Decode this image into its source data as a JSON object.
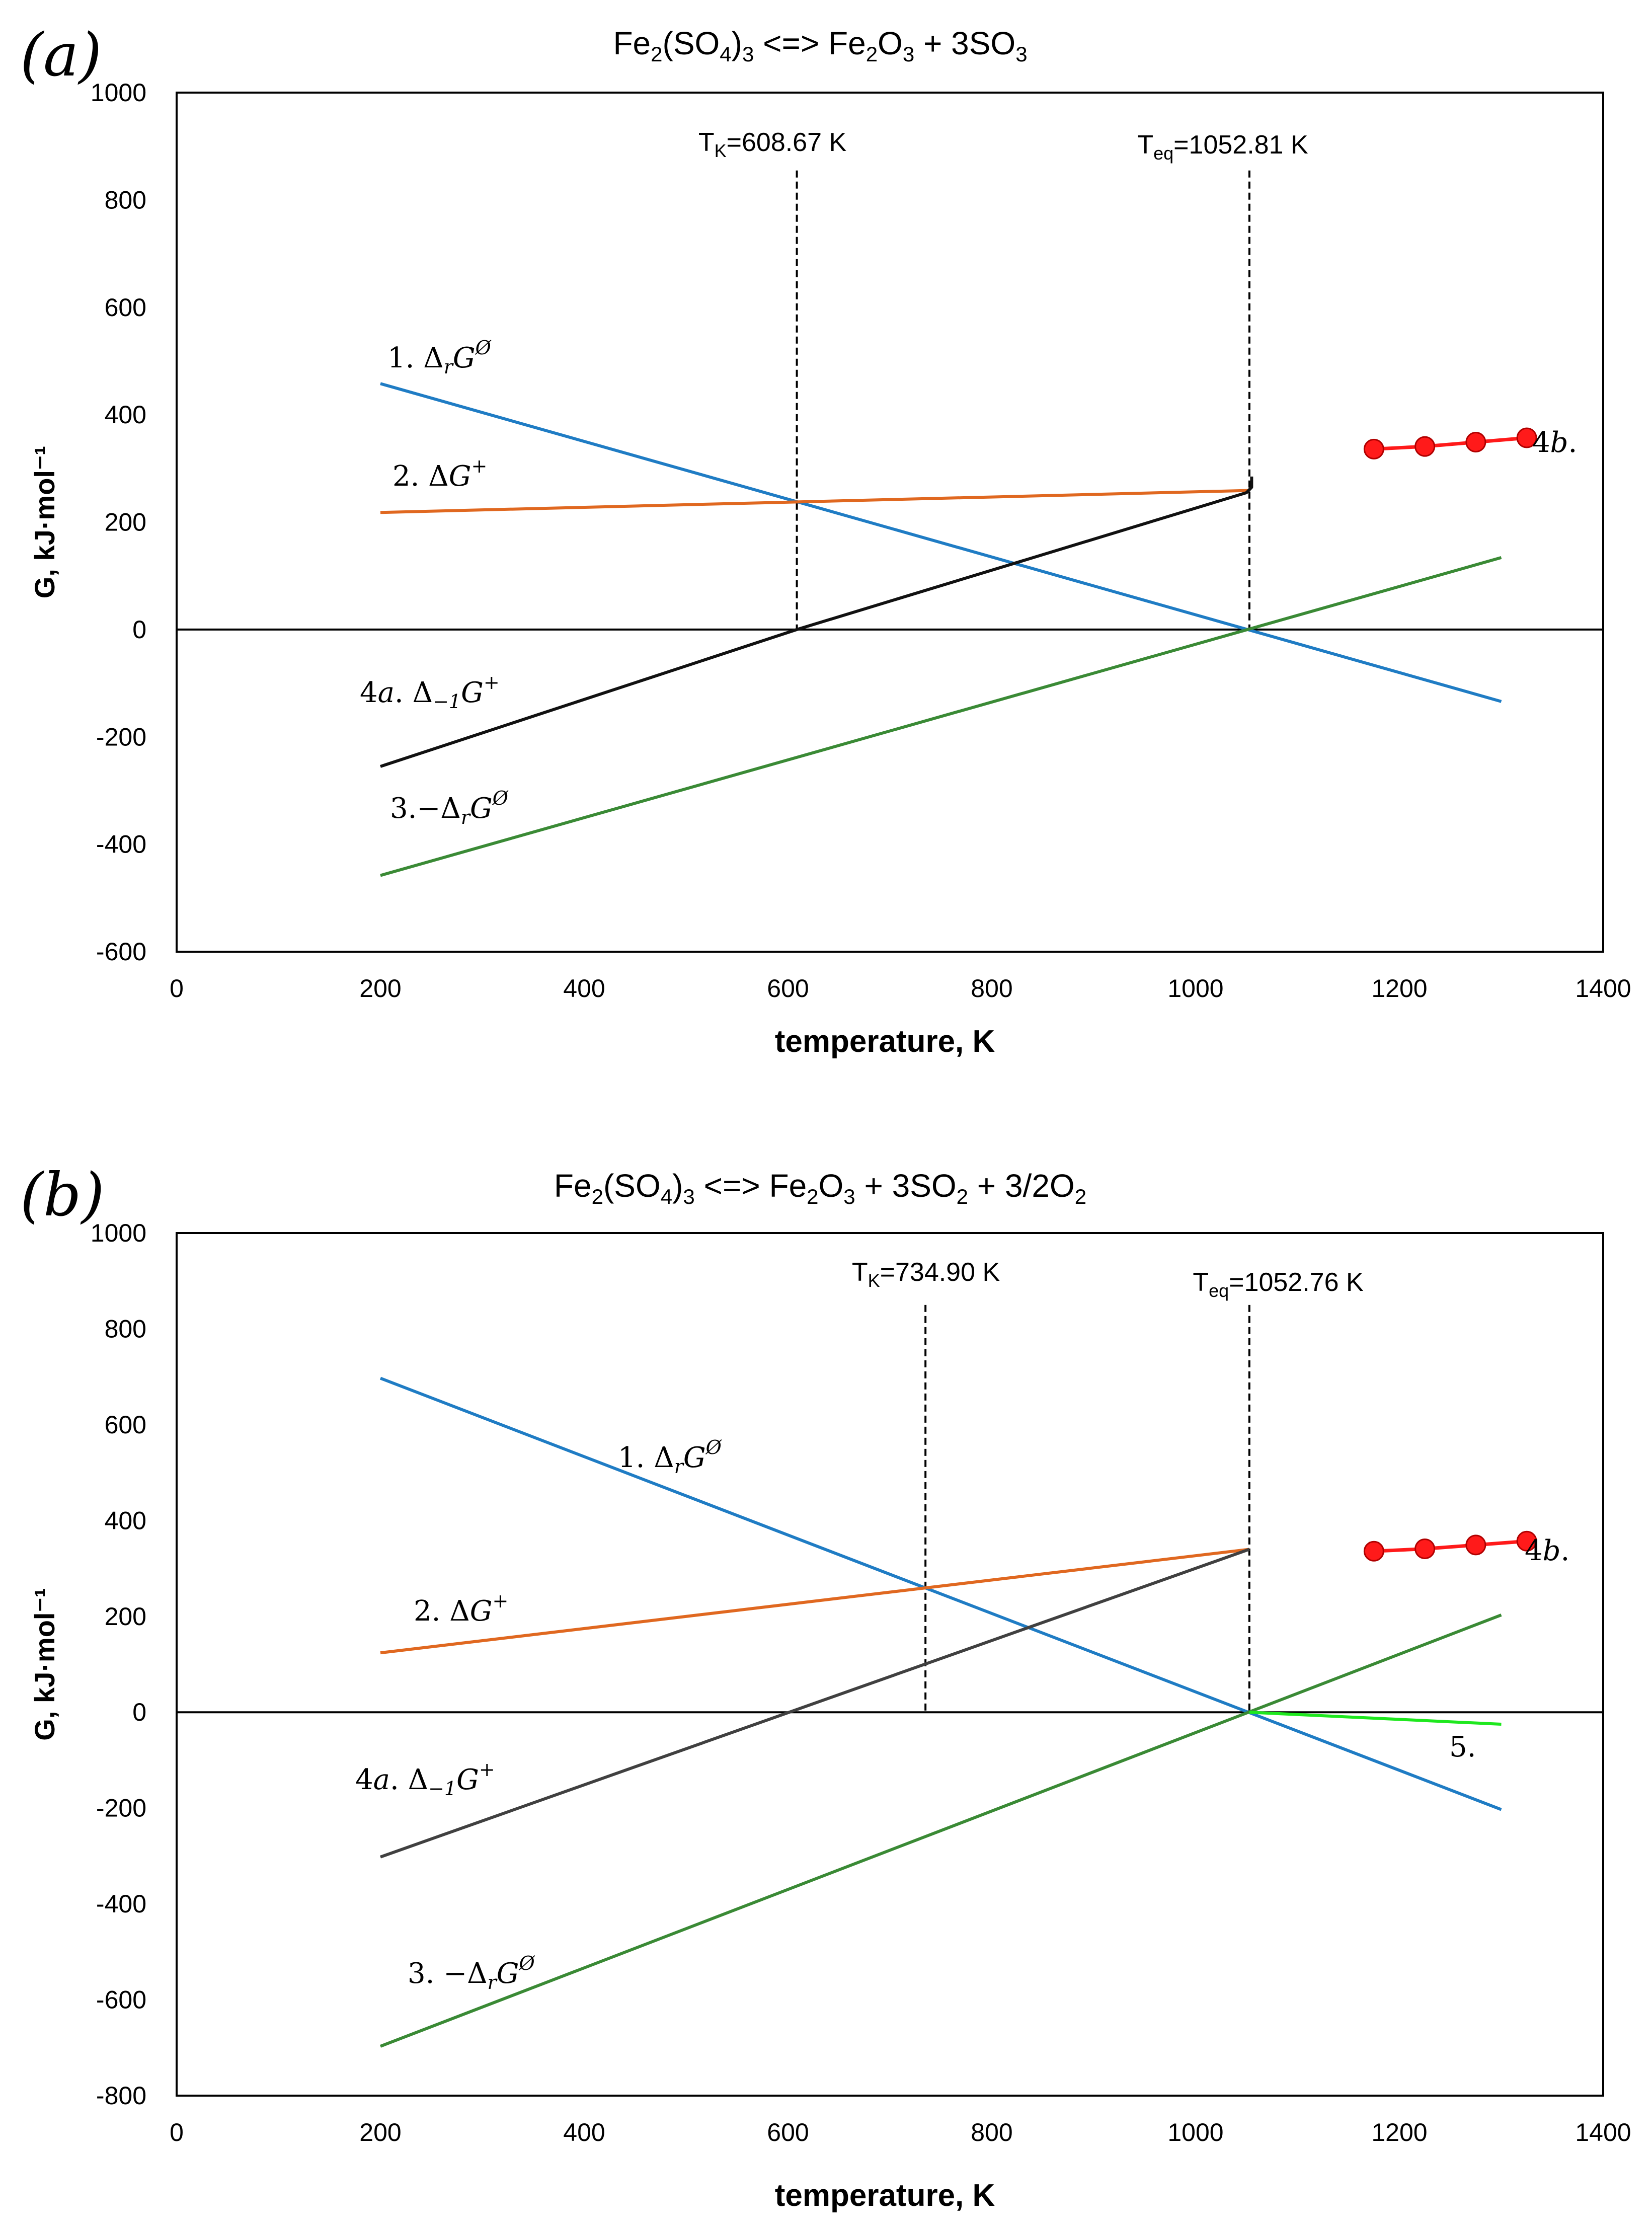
{
  "chart_data": [
    {
      "type": "line",
      "panel_label": "(a)",
      "title": {
        "main": "Fe",
        "sub1": "2",
        "mid1": "(SO",
        "sub2": "4",
        "mid2": ")",
        "sub3": "3",
        "mid3": " <=> Fe",
        "sub4": "2",
        "mid4": "O",
        "sub5": "3",
        "mid5": " + 3SO",
        "sub6": "3"
      },
      "xlabel": "temperature,  K",
      "ylabel": "G, kJ·mol⁻¹",
      "xlim": [
        0,
        1400
      ],
      "ylim": [
        -600,
        1000
      ],
      "xticks": [
        0,
        200,
        400,
        600,
        800,
        1000,
        1200,
        1400
      ],
      "yticks": [
        -600,
        -400,
        -200,
        0,
        200,
        400,
        600,
        800,
        1000
      ],
      "xtick_labels": [
        "0",
        "200",
        "400",
        "600",
        "800",
        "1000",
        "1200",
        "1400"
      ],
      "ytick_labels": [
        "-600",
        "-400",
        "-200",
        "0",
        "200",
        "400",
        "600",
        "800",
        "1000"
      ],
      "grid": false,
      "vlines": [
        {
          "x": 608.67,
          "ymax": 855,
          "label_main": "T",
          "label_sub": "K",
          "label_rest": "=608.67 K"
        },
        {
          "x": 1052.81,
          "ymax": 855,
          "label_main": "T",
          "label_sub": "eq",
          "label_rest": "=1052.81 K"
        }
      ],
      "series": [
        {
          "name": "1. Δ",
          "sub": "r",
          "ital": "G",
          "sup": "Ø",
          "color": "#1f7cc4",
          "x": [
            200,
            1300
          ],
          "y": [
            458,
            -134
          ]
        },
        {
          "name": "2. Δ",
          "sub": "",
          "ital": "G",
          "sup": "+",
          "color": "#e06820",
          "x": [
            200,
            1052.81
          ],
          "y": [
            218,
            259
          ]
        },
        {
          "name": "3.−Δ",
          "sub": "r",
          "ital": "G",
          "sup": "Ø",
          "color": "#3a8a35",
          "x": [
            200,
            1300
          ],
          "y": [
            -458,
            134
          ]
        },
        {
          "name": "4a. Δ",
          "sub": "−1",
          "ital": "G",
          "sup": "+",
          "color": "#111111",
          "x": [
            200,
            608.67,
            1050,
            1055,
            1055
          ],
          "y": [
            -255,
            0,
            255,
            265,
            285
          ]
        },
        {
          "name": "4b.",
          "sub": "",
          "ital": "",
          "sup": "",
          "color": "#ff1a1a",
          "markers": true,
          "x": [
            1175,
            1225,
            1275,
            1325
          ],
          "y": [
            336,
            341,
            349,
            357
          ]
        }
      ]
    },
    {
      "type": "line",
      "panel_label": "(b)",
      "title": {
        "main": "Fe",
        "sub1": "2",
        "mid1": "(SO",
        "sub2": "4",
        "mid2": ")",
        "sub3": "3",
        "mid3": "  <=> Fe",
        "sub4": "2",
        "mid4": "O",
        "sub5": "3",
        "mid5": " + 3SO",
        "sub6": "2",
        "mid6": " + 3/2O",
        "sub7": "2"
      },
      "xlabel": "temperature,  K",
      "ylabel": "G, kJ·mol⁻¹",
      "xlim": [
        0,
        1400
      ],
      "ylim": [
        -800,
        1000
      ],
      "xticks": [
        0,
        200,
        400,
        600,
        800,
        1000,
        1200,
        1400
      ],
      "yticks": [
        -800,
        -600,
        -400,
        -200,
        0,
        200,
        400,
        600,
        800,
        1000
      ],
      "xtick_labels": [
        "0",
        "200",
        "400",
        "600",
        "800",
        "1000",
        "1200",
        "1400"
      ],
      "ytick_labels": [
        "-800",
        "-600",
        "-400",
        "-200",
        "0",
        "200",
        "400",
        "600",
        "800",
        "1000"
      ],
      "grid": false,
      "vlines": [
        {
          "x": 734.9,
          "ymax": 850,
          "label_main": "T",
          "label_sub": "K",
          "label_rest": "=734.90 K"
        },
        {
          "x": 1052.76,
          "ymax": 850,
          "label_main": "T",
          "label_sub": "eq",
          "label_rest": "=1052.76 K"
        }
      ],
      "series": [
        {
          "name": "1. Δ",
          "sub": "r",
          "ital": "G",
          "sup": "Ø",
          "color": "#1f7cc4",
          "x": [
            200,
            1300
          ],
          "y": [
            697,
            -203
          ]
        },
        {
          "name": "2. Δ",
          "sub": "",
          "ital": "G",
          "sup": "+",
          "color": "#e06820",
          "x": [
            200,
            1052.76
          ],
          "y": [
            124,
            340
          ]
        },
        {
          "name": "3. −Δ",
          "sub": "r",
          "ital": "G",
          "sup": "Ø",
          "color": "#3a8a35",
          "x": [
            200,
            1300
          ],
          "y": [
            -697,
            203
          ]
        },
        {
          "name": "4a. Δ",
          "sub": "−1",
          "ital": "G",
          "sup": "+",
          "color": "#404040",
          "x": [
            200,
            1052.76
          ],
          "y": [
            -302,
            340
          ]
        },
        {
          "name": "5.",
          "sub": "",
          "ital": "",
          "sup": "",
          "color": "#1ee81e",
          "x": [
            1052.76,
            1300
          ],
          "y": [
            0,
            -25
          ]
        },
        {
          "name": "4b.",
          "sub": "",
          "ital": "",
          "sup": "",
          "color": "#ff1a1a",
          "markers": true,
          "x": [
            1175,
            1225,
            1275,
            1325
          ],
          "y": [
            336,
            341,
            349,
            357
          ]
        }
      ]
    }
  ]
}
